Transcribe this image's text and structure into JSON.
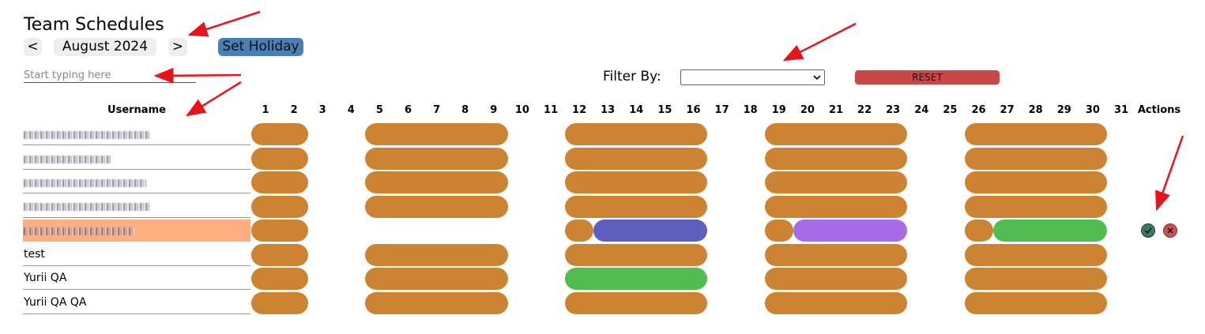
{
  "header": {
    "title": "Team Schedules",
    "prev": "<",
    "month": "August 2024",
    "next": ">",
    "set_holiday": "Set Holiday"
  },
  "search": {
    "placeholder": "Start typing here"
  },
  "filter": {
    "label": "Filter By:",
    "reset": "RESET"
  },
  "table": {
    "username_header": "Username",
    "actions_header": "Actions",
    "days": [
      1,
      2,
      3,
      4,
      5,
      6,
      7,
      8,
      9,
      10,
      11,
      12,
      13,
      14,
      15,
      16,
      17,
      18,
      19,
      20,
      21,
      22,
      23,
      24,
      25,
      26,
      27,
      28,
      29,
      30,
      31
    ],
    "rows": [
      {
        "segments": [
          {
            "start": 1,
            "end": 2,
            "color": "#cd8432"
          },
          {
            "start": 5,
            "end": 9,
            "color": "#cd8432"
          },
          {
            "start": 12,
            "end": 16,
            "color": "#cd8432"
          },
          {
            "start": 19,
            "end": 23,
            "color": "#cd8432"
          },
          {
            "start": 26,
            "end": 30,
            "color": "#cd8432"
          }
        ]
      },
      {
        "segments": [
          {
            "start": 1,
            "end": 2,
            "color": "#cd8432"
          },
          {
            "start": 5,
            "end": 9,
            "color": "#cd8432"
          },
          {
            "start": 12,
            "end": 16,
            "color": "#cd8432"
          },
          {
            "start": 19,
            "end": 23,
            "color": "#cd8432"
          },
          {
            "start": 26,
            "end": 30,
            "color": "#cd8432"
          }
        ]
      },
      {
        "segments": [
          {
            "start": 1,
            "end": 2,
            "color": "#cd8432"
          },
          {
            "start": 5,
            "end": 9,
            "color": "#cd8432"
          },
          {
            "start": 12,
            "end": 16,
            "color": "#cd8432"
          },
          {
            "start": 19,
            "end": 23,
            "color": "#cd8432"
          },
          {
            "start": 26,
            "end": 30,
            "color": "#cd8432"
          }
        ]
      },
      {
        "segments": [
          {
            "start": 1,
            "end": 2,
            "color": "#cd8432"
          },
          {
            "start": 5,
            "end": 9,
            "color": "#cd8432"
          },
          {
            "start": 12,
            "end": 16,
            "color": "#cd8432"
          },
          {
            "start": 19,
            "end": 23,
            "color": "#cd8432"
          },
          {
            "start": 26,
            "end": 30,
            "color": "#cd8432"
          }
        ]
      },
      {
        "segments": [
          {
            "start": 1,
            "end": 2,
            "color": "#cd8432"
          },
          {
            "start": 12,
            "end": 12,
            "color": "#cd8432"
          },
          {
            "start": 13,
            "end": 16,
            "color": "#5f5fbf"
          },
          {
            "start": 19,
            "end": 19,
            "color": "#cd8432"
          },
          {
            "start": 20,
            "end": 23,
            "color": "#a66be6"
          },
          {
            "start": 26,
            "end": 26,
            "color": "#cd8432"
          },
          {
            "start": 27,
            "end": 30,
            "color": "#52bb52"
          }
        ]
      },
      {
        "username": "test",
        "segments": [
          {
            "start": 1,
            "end": 2,
            "color": "#cd8432"
          },
          {
            "start": 5,
            "end": 9,
            "color": "#cd8432"
          },
          {
            "start": 12,
            "end": 16,
            "color": "#cd8432"
          },
          {
            "start": 19,
            "end": 23,
            "color": "#cd8432"
          },
          {
            "start": 26,
            "end": 30,
            "color": "#cd8432"
          }
        ]
      },
      {
        "username": "Yurii QA",
        "segments": [
          {
            "start": 1,
            "end": 2,
            "color": "#cd8432"
          },
          {
            "start": 5,
            "end": 9,
            "color": "#cd8432"
          },
          {
            "start": 12,
            "end": 16,
            "color": "#52bb52"
          },
          {
            "start": 19,
            "end": 23,
            "color": "#cd8432"
          },
          {
            "start": 26,
            "end": 30,
            "color": "#cd8432"
          }
        ]
      },
      {
        "username": "Yurii QA QA",
        "segments": [
          {
            "start": 1,
            "end": 2,
            "color": "#cd8432"
          },
          {
            "start": 5,
            "end": 9,
            "color": "#cd8432"
          },
          {
            "start": 12,
            "end": 16,
            "color": "#cd8432"
          },
          {
            "start": 19,
            "end": 23,
            "color": "#cd8432"
          },
          {
            "start": 26,
            "end": 30,
            "color": "#cd8432"
          }
        ]
      }
    ]
  }
}
